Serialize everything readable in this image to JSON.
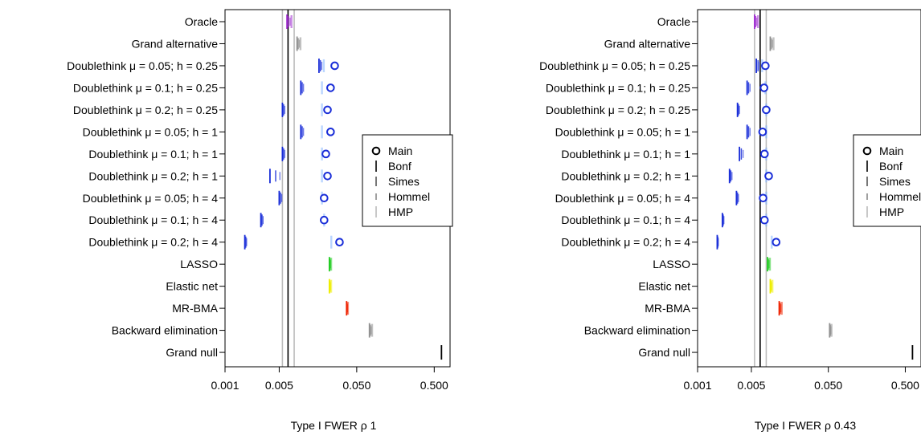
{
  "legend_entries": [
    {
      "label": "Main",
      "symbol": "circle",
      "color": "#000000"
    },
    {
      "label": "Bonf",
      "symbol": "tick-long",
      "color": "#000000"
    },
    {
      "label": "Simes",
      "symbol": "tick-mid",
      "color": "#555555"
    },
    {
      "label": "Hommel",
      "symbol": "tick-short",
      "color": "#888888"
    },
    {
      "label": "HMP",
      "symbol": "tick-long",
      "color": "#bbbbbb"
    }
  ],
  "chart_data": [
    {
      "type": "scatter",
      "xlabel": "Type I FWER ρ 1",
      "ylabel": "",
      "x_scale": "log",
      "xlim": [
        0.001,
        0.8
      ],
      "x_ticks": [
        0.001,
        0.005,
        0.05,
        0.5
      ],
      "x_tick_labels": [
        "0.001",
        "0.005",
        "0.050",
        "0.500"
      ],
      "reference_lines": [
        {
          "x": 0.0065,
          "color": "#000000"
        },
        {
          "x": 0.0055,
          "color": "#bbbbbb"
        },
        {
          "x": 0.0078,
          "color": "#bbbbbb"
        }
      ],
      "legend": "right",
      "categories": [
        "Oracle",
        "Grand alternative",
        "Doublethink μ = 0.05; h = 0.25",
        "Doublethink μ = 0.1; h = 0.25",
        "Doublethink μ = 0.2; h = 0.25",
        "Doublethink μ = 0.05; h = 1",
        "Doublethink μ = 0.1; h = 1",
        "Doublethink μ = 0.2; h = 1",
        "Doublethink μ = 0.05; h = 4",
        "Doublethink μ = 0.1; h = 4",
        "Doublethink μ = 0.2; h = 4",
        "LASSO",
        "Elastic net",
        "MR-BMA",
        "Backward elimination",
        "Grand null"
      ],
      "rows": [
        {
          "color": "#a030d0",
          "main": null,
          "bonf": 0.0063,
          "simes": 0.0066,
          "hommel": 0.0069,
          "hmp": 0.0072
        },
        {
          "color": "#909090",
          "main": null,
          "bonf": 0.0085,
          "simes": 0.0088,
          "hommel": 0.0091,
          "hmp": 0.0094
        },
        {
          "color": "#1a2ed8",
          "main": 0.026,
          "bonf": 0.0163,
          "simes": 0.017,
          "hommel": 0.0177,
          "hmp": 0.0188
        },
        {
          "color": "#1a2ed8",
          "main": 0.023,
          "bonf": 0.0095,
          "simes": 0.0099,
          "hommel": 0.0103,
          "hmp": 0.0178
        },
        {
          "color": "#1a2ed8",
          "main": 0.021,
          "bonf": 0.0055,
          "simes": 0.0057,
          "hommel": 0.0059,
          "hmp": 0.0178
        },
        {
          "color": "#1a2ed8",
          "main": 0.023,
          "bonf": 0.0095,
          "simes": 0.0099,
          "hommel": 0.0103,
          "hmp": 0.0178
        },
        {
          "color": "#1a2ed8",
          "main": 0.02,
          "bonf": 0.0055,
          "simes": 0.0057,
          "hommel": 0.0059,
          "hmp": 0.0178
        },
        {
          "color": "#1a2ed8",
          "main": 0.021,
          "bonf": 0.0038,
          "simes": 0.0045,
          "hommel": 0.0051,
          "hmp": 0.0178
        },
        {
          "color": "#1a2ed8",
          "main": 0.019,
          "bonf": 0.005,
          "simes": 0.0052,
          "hommel": 0.0054,
          "hmp": 0.0178
        },
        {
          "color": "#1a2ed8",
          "main": 0.019,
          "bonf": 0.0029,
          "simes": 0.003,
          "hommel": 0.0031,
          "hmp": 0.019
        },
        {
          "color": "#1a2ed8",
          "main": 0.03,
          "bonf": 0.0018,
          "simes": 0.00185,
          "hommel": 0.0019,
          "hmp": 0.0235
        },
        {
          "color": "#22cc22",
          "main": null,
          "bonf": 0.0222,
          "simes": 0.0226,
          "hommel": 0.023,
          "hmp": 0.0234
        },
        {
          "color": "#eeee00",
          "main": null,
          "bonf": 0.0222,
          "simes": 0.0226,
          "hommel": 0.023,
          "hmp": 0.0234
        },
        {
          "color": "#ee2200",
          "main": null,
          "bonf": 0.037,
          "simes": 0.0375,
          "hommel": 0.038,
          "hmp": 0.0385
        },
        {
          "color": "#909090",
          "main": null,
          "bonf": 0.073,
          "simes": 0.075,
          "hommel": 0.077,
          "hmp": 0.079
        },
        {
          "color": "#000000",
          "main": null,
          "bonf": 0.62,
          "simes": null,
          "hommel": null,
          "hmp": null
        }
      ]
    },
    {
      "type": "scatter",
      "xlabel": "Type I FWER ρ 0.43",
      "ylabel": "",
      "x_scale": "log",
      "xlim": [
        0.001,
        0.8
      ],
      "x_ticks": [
        0.001,
        0.005,
        0.05,
        0.5
      ],
      "x_tick_labels": [
        "0.001",
        "0.005",
        "0.050",
        "0.500"
      ],
      "reference_lines": [
        {
          "x": 0.0065,
          "color": "#000000"
        },
        {
          "x": 0.0055,
          "color": "#bbbbbb"
        },
        {
          "x": 0.0078,
          "color": "#bbbbbb"
        }
      ],
      "legend": "right",
      "categories": [
        "Oracle",
        "Grand alternative",
        "Doublethink μ = 0.05; h = 0.25",
        "Doublethink μ = 0.1; h = 0.25",
        "Doublethink μ = 0.2; h = 0.25",
        "Doublethink μ = 0.05; h = 1",
        "Doublethink μ = 0.1; h = 1",
        "Doublethink μ = 0.2; h = 1",
        "Doublethink μ = 0.05; h = 4",
        "Doublethink μ = 0.1; h = 4",
        "Doublethink μ = 0.2; h = 4",
        "LASSO",
        "Elastic net",
        "MR-BMA",
        "Backward elimination",
        "Grand null"
      ],
      "rows": [
        {
          "color": "#a030d0",
          "main": null,
          "bonf": 0.0055,
          "simes": 0.0057,
          "hommel": 0.0059,
          "hmp": 0.0061
        },
        {
          "color": "#909090",
          "main": null,
          "bonf": 0.0088,
          "simes": 0.0091,
          "hommel": 0.0094,
          "hmp": 0.0097
        },
        {
          "color": "#1a2ed8",
          "main": 0.0076,
          "bonf": 0.0058,
          "simes": 0.0061,
          "hommel": 0.0064,
          "hmp": 0.0069
        },
        {
          "color": "#1a2ed8",
          "main": 0.0073,
          "bonf": 0.0044,
          "simes": 0.0046,
          "hommel": 0.0048,
          "hmp": 0.0076
        },
        {
          "color": "#1a2ed8",
          "main": 0.0078,
          "bonf": 0.0033,
          "simes": 0.0034,
          "hommel": 0.0035,
          "hmp": 0.0078
        },
        {
          "color": "#1a2ed8",
          "main": 0.007,
          "bonf": 0.0044,
          "simes": 0.0046,
          "hommel": 0.0048,
          "hmp": 0.0078
        },
        {
          "color": "#1a2ed8",
          "main": 0.0074,
          "bonf": 0.0035,
          "simes": 0.0037,
          "hommel": 0.0039,
          "hmp": 0.0078
        },
        {
          "color": "#1a2ed8",
          "main": 0.0084,
          "bonf": 0.0026,
          "simes": 0.0027,
          "hommel": 0.0028,
          "hmp": 0.0078
        },
        {
          "color": "#1a2ed8",
          "main": 0.0071,
          "bonf": 0.0032,
          "simes": 0.0033,
          "hommel": 0.0034,
          "hmp": 0.0078
        },
        {
          "color": "#1a2ed8",
          "main": 0.0074,
          "bonf": 0.0021,
          "simes": 0.00215,
          "hommel": 0.0022,
          "hmp": 0.0078
        },
        {
          "color": "#1a2ed8",
          "main": 0.0105,
          "bonf": 0.0018,
          "simes": 0.00183,
          "hommel": 0.00186,
          "hmp": 0.0092
        },
        {
          "color": "#22cc22",
          "main": null,
          "bonf": 0.0081,
          "simes": 0.0083,
          "hommel": 0.0085,
          "hmp": 0.0087
        },
        {
          "color": "#eeee00",
          "main": null,
          "bonf": 0.0088,
          "simes": 0.009,
          "hommel": 0.0092,
          "hmp": 0.0094
        },
        {
          "color": "#ee2200",
          "main": null,
          "bonf": 0.0115,
          "simes": 0.0118,
          "hommel": 0.0121,
          "hmp": 0.0124
        },
        {
          "color": "#909090",
          "main": null,
          "bonf": 0.052,
          "simes": 0.053,
          "hommel": 0.054,
          "hmp": 0.055
        },
        {
          "color": "#000000",
          "main": null,
          "bonf": 0.62,
          "simes": null,
          "hommel": null,
          "hmp": null
        }
      ]
    }
  ]
}
